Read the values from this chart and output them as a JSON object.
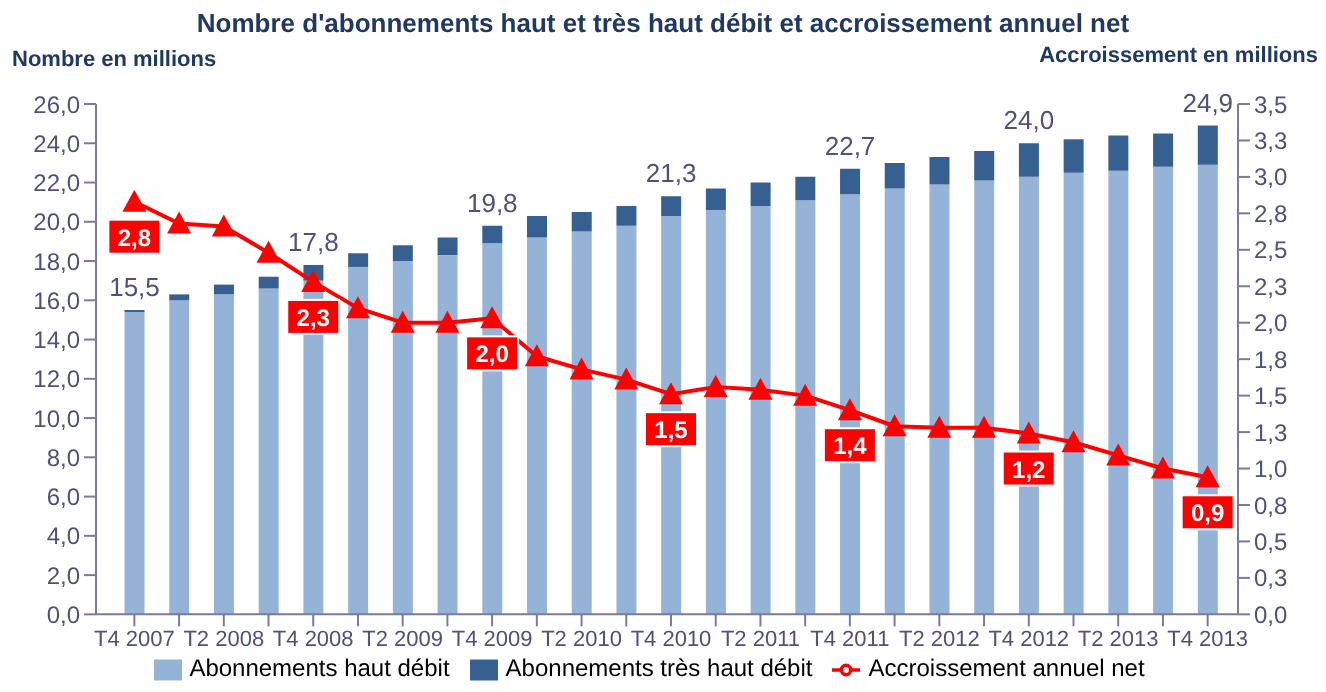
{
  "chart_data": {
    "type": "bar",
    "title": "Nombre d'abonnements haut et très haut débit et accroissement annuel net",
    "ylabel": "Nombre en millions",
    "y2label": "Accroissement en millions",
    "stacked": true,
    "categories": [
      "T4 2007",
      null,
      "T2 2008",
      null,
      "T4 2008",
      null,
      "T2 2009",
      null,
      "T4 2009",
      null,
      "T2 2010",
      null,
      "T4 2010",
      null,
      "T2 2011",
      null,
      "T4 2011",
      null,
      "T2 2012",
      null,
      "T4 2012",
      null,
      "T2 2013",
      null,
      "T4 2013"
    ],
    "series": [
      {
        "name": "Abonnements haut débit",
        "color": "#95b3d7",
        "values": [
          15.4,
          16.0,
          16.3,
          16.6,
          17.0,
          17.7,
          18.0,
          18.3,
          18.9,
          19.2,
          19.5,
          19.8,
          20.3,
          20.6,
          20.8,
          21.1,
          21.4,
          21.7,
          21.9,
          22.1,
          22.3,
          22.5,
          22.6,
          22.8,
          22.9
        ]
      },
      {
        "name": "Abonnements très haut débit",
        "color": "#376092",
        "values": [
          0.1,
          0.3,
          0.5,
          0.6,
          0.8,
          0.7,
          0.8,
          0.9,
          0.9,
          1.1,
          1.0,
          1.0,
          1.0,
          1.1,
          1.2,
          1.2,
          1.3,
          1.3,
          1.4,
          1.5,
          1.7,
          1.7,
          1.8,
          1.7,
          2.0
        ]
      },
      {
        "name": "Accroissement annuel net",
        "type": "line",
        "axis": "y2",
        "color": "#ff0000",
        "marker": "triangle",
        "values": [
          2.83,
          2.68,
          2.66,
          2.48,
          2.28,
          2.1,
          2.0,
          2.0,
          2.03,
          1.77,
          1.68,
          1.61,
          1.51,
          1.56,
          1.54,
          1.5,
          1.4,
          1.29,
          1.28,
          1.28,
          1.24,
          1.18,
          1.09,
          1.0,
          0.94
        ],
        "value_labels": [
          "2,8",
          null,
          null,
          null,
          "2,3",
          null,
          null,
          null,
          "2,0",
          null,
          null,
          null,
          "1,5",
          null,
          null,
          null,
          "1,4",
          null,
          null,
          null,
          "1,2",
          null,
          null,
          null,
          "0,9"
        ]
      }
    ],
    "totals": [
      "15,5",
      null,
      null,
      null,
      "17,8",
      null,
      null,
      null,
      "19,8",
      null,
      null,
      null,
      "21,3",
      null,
      null,
      null,
      "22,7",
      null,
      null,
      null,
      "24,0",
      null,
      null,
      null,
      "24,9"
    ],
    "ylim": [
      0,
      26
    ],
    "yticks": [
      {
        "value": 0,
        "label": "0,0"
      },
      {
        "value": 2,
        "label": "2,0"
      },
      {
        "value": 4,
        "label": "4,0"
      },
      {
        "value": 6,
        "label": "6,0"
      },
      {
        "value": 8,
        "label": "8,0"
      },
      {
        "value": 10,
        "label": "10,0"
      },
      {
        "value": 12,
        "label": "12,0"
      },
      {
        "value": 14,
        "label": "14,0"
      },
      {
        "value": 16,
        "label": "16,0"
      },
      {
        "value": 18,
        "label": "18,0"
      },
      {
        "value": 20,
        "label": "20,0"
      },
      {
        "value": 22,
        "label": "22,0"
      },
      {
        "value": 24,
        "label": "24,0"
      },
      {
        "value": 26,
        "label": "26,0"
      }
    ],
    "y2lim": [
      0,
      3.5
    ],
    "y2ticks": [
      {
        "value": 0,
        "label": "0,0"
      },
      {
        "value": 0.25,
        "label": "0,3"
      },
      {
        "value": 0.5,
        "label": "0,5"
      },
      {
        "value": 0.75,
        "label": "0,8"
      },
      {
        "value": 1,
        "label": "1,0"
      },
      {
        "value": 1.25,
        "label": "1,3"
      },
      {
        "value": 1.5,
        "label": "1,5"
      },
      {
        "value": 1.75,
        "label": "1,8"
      },
      {
        "value": 2,
        "label": "2,0"
      },
      {
        "value": 2.25,
        "label": "2,3"
      },
      {
        "value": 2.5,
        "label": "2,5"
      },
      {
        "value": 2.75,
        "label": "2,8"
      },
      {
        "value": 3,
        "label": "3,0"
      },
      {
        "value": 3.25,
        "label": "3,3"
      },
      {
        "value": 3.5,
        "label": "3,5"
      }
    ],
    "legend": "bottom"
  }
}
